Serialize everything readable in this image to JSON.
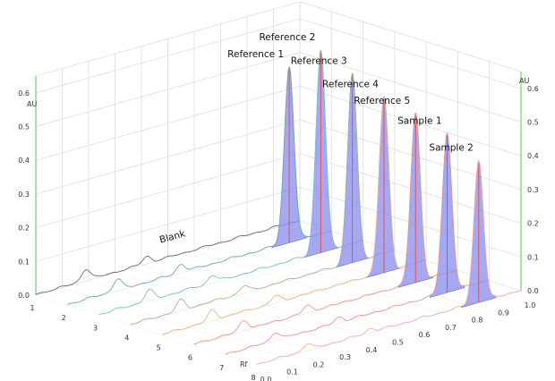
{
  "chart_data": {
    "type": "line",
    "subtype": "3d-waterfall-densitogram",
    "title": "",
    "x_axis": {
      "label": "Rf",
      "ticks": [
        0.0,
        0.1,
        0.2,
        0.3,
        0.4,
        0.5,
        0.6,
        0.7,
        0.8,
        0.9,
        1.0
      ],
      "tick_labels": [
        "0.0",
        "0.1",
        "0.2",
        "0.3",
        "0.4",
        "0.5",
        "0.6",
        "0.7",
        "0.8",
        "0.9",
        "1.0"
      ],
      "range": [
        0.0,
        1.0
      ]
    },
    "y_axis": {
      "label": "AU",
      "ticks": [
        0.0,
        0.1,
        0.2,
        0.3,
        0.4,
        0.5,
        0.6
      ],
      "tick_labels": [
        "0.0",
        "0.1",
        "0.2",
        "0.3",
        "0.4",
        "0.5",
        "0.6"
      ],
      "range": [
        0.0,
        0.65
      ]
    },
    "z_axis": {
      "label": "",
      "ticks": [
        1,
        2,
        3,
        4,
        5,
        6,
        7,
        8
      ],
      "tick_labels": [
        "1",
        "2",
        "3",
        "4",
        "5",
        "6",
        "7",
        "8"
      ]
    },
    "series": [
      {
        "name": "Blank",
        "track": 1,
        "color": "#6a6a6a",
        "peak_rf": null,
        "peak_au": 0.0,
        "fill": false,
        "small_peaks": [
          {
            "rf": 0.19,
            "au": 0.035
          },
          {
            "rf": 0.42,
            "au": 0.02
          }
        ]
      },
      {
        "name": "Reference 1",
        "track": 2,
        "color": "#6fa8a0",
        "peak_rf": 0.84,
        "peak_au": 0.52,
        "fill": true,
        "small_peaks": [
          {
            "rf": 0.19,
            "au": 0.035
          },
          {
            "rf": 0.43,
            "au": 0.025
          }
        ]
      },
      {
        "name": "Reference 2",
        "track": 3,
        "color": "#7fbfc4",
        "peak_rf": 0.84,
        "peak_au": 0.6,
        "fill": true,
        "small_peaks": [
          {
            "rf": 0.19,
            "au": 0.03
          },
          {
            "rf": 0.43,
            "au": 0.022
          }
        ]
      },
      {
        "name": "Reference 3",
        "track": 4,
        "color": "#9fb98c",
        "peak_rf": 0.84,
        "peak_au": 0.56,
        "fill": true,
        "small_peaks": [
          {
            "rf": 0.19,
            "au": 0.03
          },
          {
            "rf": 0.43,
            "au": 0.02
          }
        ]
      },
      {
        "name": "Reference 4",
        "track": 5,
        "color": "#e8b58a",
        "peak_rf": 0.84,
        "peak_au": 0.52,
        "fill": true,
        "small_peaks": [
          {
            "rf": 0.19,
            "au": 0.03
          },
          {
            "rf": 0.43,
            "au": 0.02
          }
        ]
      },
      {
        "name": "Reference 5",
        "track": 6,
        "color": "#e99a83",
        "peak_rf": 0.84,
        "peak_au": 0.5,
        "fill": true,
        "small_peaks": [
          {
            "rf": 0.19,
            "au": 0.03
          },
          {
            "rf": 0.43,
            "au": 0.02
          }
        ]
      },
      {
        "name": "Sample 1",
        "track": 7,
        "color": "#e59a8a",
        "peak_rf": 0.84,
        "peak_au": 0.47,
        "fill": true,
        "small_peaks": [
          {
            "rf": 0.19,
            "au": 0.025
          },
          {
            "rf": 0.43,
            "au": 0.015
          }
        ]
      },
      {
        "name": "Sample 2",
        "track": 8,
        "color": "#f0b39d",
        "peak_rf": 0.84,
        "peak_au": 0.42,
        "fill": true,
        "small_peaks": [
          {
            "rf": 0.19,
            "au": 0.02
          },
          {
            "rf": 0.43,
            "au": 0.012
          }
        ]
      }
    ],
    "peak_fill_color": "#8e90ee",
    "peak_marker_color": "#e24a4a",
    "axis_line_color": "#7ec87e",
    "grid": true,
    "legend": "none"
  }
}
